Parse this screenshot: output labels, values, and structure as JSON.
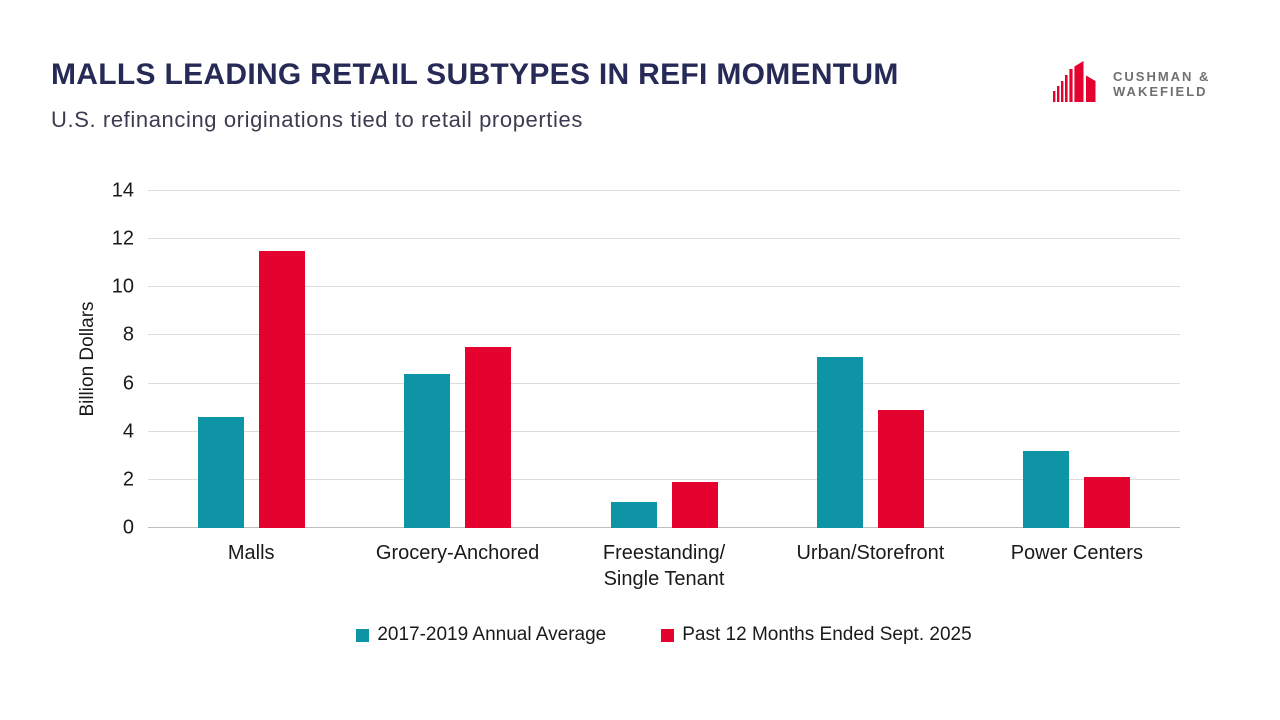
{
  "header": {
    "title": "MALLS LEADING RETAIL SUBTYPES IN REFI MOMENTUM",
    "subtitle": "U.S. refinancing originations tied to retail properties",
    "logo": {
      "line1": "CUSHMAN &",
      "line2": "WAKEFIELD"
    }
  },
  "colors": {
    "title_navy": "#272A56",
    "subtitle_gray": "#3C3C50",
    "series_teal": "#0E94A4",
    "series_red": "#E4032E",
    "logo_red": "#E4032E",
    "logo_gray": "#6F7072",
    "gridline": "#DCDCDC",
    "baseline": "#BFBFBF",
    "axis_text": "#1A1A1A"
  },
  "chart_data": {
    "type": "bar",
    "title": "MALLS LEADING RETAIL SUBTYPES IN REFI MOMENTUM",
    "subtitle": "U.S. refinancing originations tied to retail properties",
    "categories": [
      "Malls",
      "Grocery-Anchored",
      "Freestanding/\nSingle Tenant",
      "Urban/Storefront",
      "Power Centers"
    ],
    "series": [
      {
        "name": "2017-2019 Annual Average",
        "color": "#0E94A4",
        "values": [
          4.6,
          6.4,
          1.1,
          7.1,
          3.2
        ]
      },
      {
        "name": "Past 12 Months Ended Sept. 2025",
        "color": "#E4032E",
        "values": [
          11.5,
          7.5,
          1.9,
          4.9,
          2.1
        ]
      }
    ],
    "xlabel": "",
    "ylabel": "Billion Dollars",
    "ylim": [
      0,
      14
    ],
    "yticks": [
      0,
      2,
      4,
      6,
      8,
      10,
      12,
      14
    ],
    "grid": true,
    "legend_position": "bottom"
  }
}
